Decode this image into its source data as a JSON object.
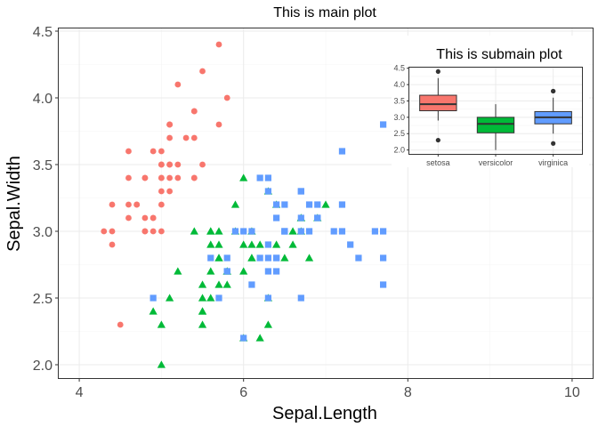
{
  "chart_data": [
    {
      "type": "scatter",
      "title": "This is main plot",
      "xlabel": "Sepal.Length",
      "ylabel": "Sepal.Width",
      "xlim": [
        3.75,
        10.25
      ],
      "ylim": [
        1.9,
        4.52
      ],
      "xticks": [
        "4",
        "6",
        "8",
        "10"
      ],
      "yticks": [
        "2.0",
        "2.5",
        "3.0",
        "3.5",
        "4.0",
        "4.5"
      ],
      "grid": true,
      "legend": "none",
      "series": [
        {
          "color": "#F8766D",
          "shape": "circle",
          "points": [
            [
              5.1,
              3.5
            ],
            [
              4.9,
              3.0
            ],
            [
              4.7,
              3.2
            ],
            [
              4.6,
              3.1
            ],
            [
              5.0,
              3.6
            ],
            [
              5.4,
              3.9
            ],
            [
              4.6,
              3.4
            ],
            [
              5.0,
              3.4
            ],
            [
              4.4,
              2.9
            ],
            [
              4.9,
              3.1
            ],
            [
              5.4,
              3.7
            ],
            [
              4.8,
              3.4
            ],
            [
              4.8,
              3.0
            ],
            [
              4.3,
              3.0
            ],
            [
              5.8,
              4.0
            ],
            [
              5.7,
              4.4
            ],
            [
              5.4,
              3.9
            ],
            [
              5.1,
              3.5
            ],
            [
              5.7,
              3.8
            ],
            [
              5.1,
              3.8
            ],
            [
              5.4,
              3.4
            ],
            [
              5.1,
              3.7
            ],
            [
              4.6,
              3.6
            ],
            [
              5.1,
              3.3
            ],
            [
              4.8,
              3.4
            ],
            [
              5.0,
              3.0
            ],
            [
              5.0,
              3.4
            ],
            [
              5.2,
              3.5
            ],
            [
              5.2,
              3.4
            ],
            [
              4.7,
              3.2
            ],
            [
              4.8,
              3.1
            ],
            [
              5.4,
              3.4
            ],
            [
              5.2,
              4.1
            ],
            [
              5.5,
              4.2
            ],
            [
              4.9,
              3.1
            ],
            [
              5.0,
              3.2
            ],
            [
              5.5,
              3.5
            ],
            [
              4.9,
              3.6
            ],
            [
              4.4,
              3.0
            ],
            [
              5.1,
              3.4
            ],
            [
              5.0,
              3.5
            ],
            [
              4.5,
              2.3
            ],
            [
              4.4,
              3.2
            ],
            [
              5.0,
              3.5
            ],
            [
              5.1,
              3.8
            ],
            [
              4.8,
              3.0
            ],
            [
              5.1,
              3.8
            ],
            [
              4.6,
              3.2
            ],
            [
              5.3,
              3.7
            ],
            [
              5.0,
              3.3
            ]
          ]
        },
        {
          "color": "#00BA38",
          "shape": "triangle",
          "points": [
            [
              7.0,
              3.2
            ],
            [
              6.4,
              3.2
            ],
            [
              6.9,
              3.1
            ],
            [
              5.5,
              2.3
            ],
            [
              6.5,
              2.8
            ],
            [
              5.7,
              2.8
            ],
            [
              6.3,
              3.3
            ],
            [
              4.9,
              2.4
            ],
            [
              6.6,
              2.9
            ],
            [
              5.2,
              2.7
            ],
            [
              5.0,
              2.0
            ],
            [
              5.9,
              3.0
            ],
            [
              6.0,
              2.2
            ],
            [
              6.1,
              2.9
            ],
            [
              5.6,
              2.9
            ],
            [
              6.7,
              3.1
            ],
            [
              5.6,
              3.0
            ],
            [
              5.8,
              2.7
            ],
            [
              6.2,
              2.2
            ],
            [
              5.6,
              2.5
            ],
            [
              5.9,
              3.2
            ],
            [
              6.1,
              2.8
            ],
            [
              6.3,
              2.5
            ],
            [
              6.1,
              2.8
            ],
            [
              6.4,
              2.9
            ],
            [
              6.6,
              3.0
            ],
            [
              6.8,
              2.8
            ],
            [
              6.7,
              3.0
            ],
            [
              6.0,
              2.9
            ],
            [
              5.7,
              2.6
            ],
            [
              5.5,
              2.4
            ],
            [
              5.5,
              2.4
            ],
            [
              5.8,
              2.7
            ],
            [
              6.0,
              2.7
            ],
            [
              5.4,
              3.0
            ],
            [
              6.0,
              3.4
            ],
            [
              6.7,
              3.1
            ],
            [
              6.3,
              2.3
            ],
            [
              5.6,
              3.0
            ],
            [
              5.5,
              2.5
            ],
            [
              5.5,
              2.6
            ],
            [
              6.1,
              3.0
            ],
            [
              5.8,
              2.6
            ],
            [
              5.0,
              2.3
            ],
            [
              5.6,
              2.7
            ],
            [
              5.7,
              3.0
            ],
            [
              5.7,
              2.9
            ],
            [
              6.2,
              2.9
            ],
            [
              5.1,
              2.5
            ],
            [
              5.7,
              2.8
            ]
          ]
        },
        {
          "color": "#619CFF",
          "shape": "square",
          "points": [
            [
              6.3,
              3.3
            ],
            [
              5.8,
              2.7
            ],
            [
              7.1,
              3.0
            ],
            [
              6.3,
              2.9
            ],
            [
              6.5,
              3.0
            ],
            [
              7.6,
              3.0
            ],
            [
              4.9,
              2.5
            ],
            [
              7.3,
              2.9
            ],
            [
              6.7,
              2.5
            ],
            [
              7.2,
              3.6
            ],
            [
              6.5,
              3.2
            ],
            [
              6.4,
              2.7
            ],
            [
              6.8,
              3.0
            ],
            [
              5.7,
              2.5
            ],
            [
              5.8,
              2.8
            ],
            [
              6.4,
              3.2
            ],
            [
              6.5,
              3.0
            ],
            [
              7.7,
              3.8
            ],
            [
              7.7,
              2.6
            ],
            [
              6.0,
              2.2
            ],
            [
              6.9,
              3.2
            ],
            [
              5.6,
              2.8
            ],
            [
              7.7,
              2.8
            ],
            [
              6.3,
              2.7
            ],
            [
              6.7,
              3.3
            ],
            [
              7.2,
              3.2
            ],
            [
              6.2,
              2.8
            ],
            [
              6.1,
              3.0
            ],
            [
              6.4,
              2.8
            ],
            [
              7.2,
              3.0
            ],
            [
              7.4,
              2.8
            ],
            [
              7.9,
              3.8
            ],
            [
              6.4,
              2.8
            ],
            [
              6.3,
              2.8
            ],
            [
              6.1,
              2.6
            ],
            [
              7.7,
              3.0
            ],
            [
              6.3,
              3.4
            ],
            [
              6.4,
              3.1
            ],
            [
              6.0,
              3.0
            ],
            [
              6.9,
              3.1
            ],
            [
              6.7,
              3.1
            ],
            [
              6.9,
              3.1
            ],
            [
              5.8,
              2.7
            ],
            [
              6.8,
              3.2
            ],
            [
              6.7,
              3.3
            ],
            [
              6.7,
              3.0
            ],
            [
              6.3,
              2.5
            ],
            [
              6.5,
              3.0
            ],
            [
              6.2,
              3.4
            ],
            [
              5.9,
              3.0
            ]
          ]
        }
      ]
    },
    {
      "type": "box",
      "title": "This is submain plot",
      "categories": [
        "setosa",
        "versicolor",
        "virginica"
      ],
      "ylim": [
        1.88,
        4.52
      ],
      "yticks": [
        "2.0",
        "2.5",
        "3.0",
        "3.5",
        "4.0",
        "4.5"
      ],
      "grid": true,
      "boxes": [
        {
          "category": "setosa",
          "color": "#F8766D",
          "q1": 3.2,
          "median": 3.4,
          "q3": 3.675,
          "whisker_low": 2.9,
          "whisker_high": 4.2,
          "outliers": [
            4.4,
            2.3
          ]
        },
        {
          "category": "versicolor",
          "color": "#00BA38",
          "q1": 2.525,
          "median": 2.8,
          "q3": 3.0,
          "whisker_low": 2.0,
          "whisker_high": 3.4,
          "outliers": []
        },
        {
          "category": "virginica",
          "color": "#619CFF",
          "q1": 2.8,
          "median": 3.0,
          "q3": 3.175,
          "whisker_low": 2.5,
          "whisker_high": 3.6,
          "outliers": [
            3.8,
            3.8,
            2.2
          ]
        }
      ]
    }
  ]
}
